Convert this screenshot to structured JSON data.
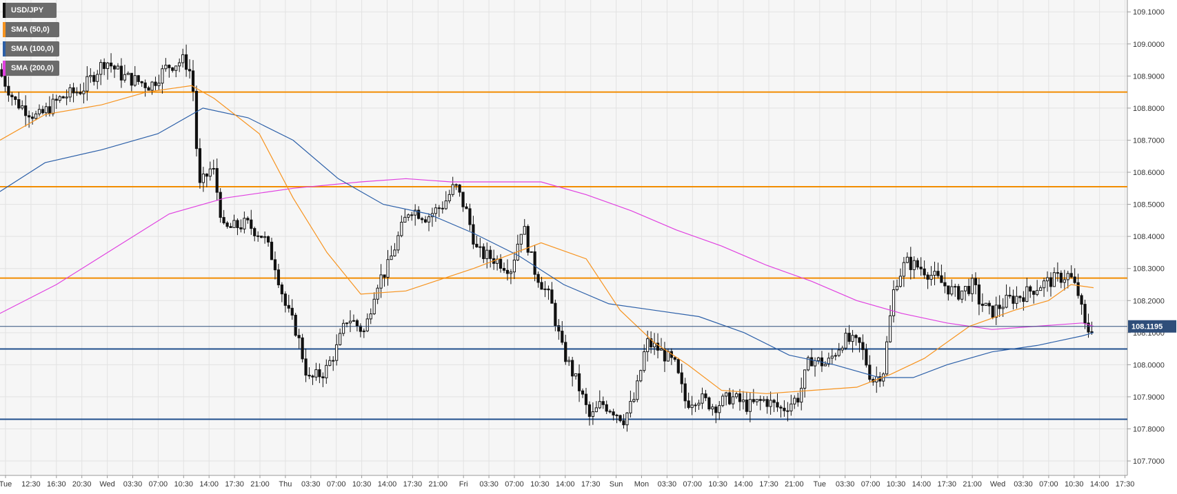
{
  "chart_data": {
    "type": "candlestick",
    "symbol": "USD/JPY",
    "ylim": [
      107.655,
      109.137
    ],
    "y_ticks": [
      "109.1000",
      "109.0000",
      "108.9000",
      "108.8000",
      "108.7000",
      "108.6000",
      "108.5000",
      "108.4000",
      "108.3000",
      "108.2000",
      "108.1000",
      "108.0000",
      "107.9000",
      "107.8000",
      "107.7000"
    ],
    "x_ticks": [
      "Tue",
      "12:30",
      "16:30",
      "20:30",
      "Wed",
      "03:30",
      "07:00",
      "10:30",
      "14:00",
      "17:30",
      "21:00",
      "Thu",
      "03:30",
      "07:00",
      "10:30",
      "14:00",
      "17:30",
      "21:00",
      "Fri",
      "03:30",
      "07:00",
      "10:30",
      "14:00",
      "17:30",
      "Sun",
      "Mon",
      "03:30",
      "07:00",
      "10:30",
      "14:00",
      "17:30",
      "21:00",
      "Tue",
      "03:30",
      "07:00",
      "10:30",
      "14:00",
      "17:30",
      "21:00",
      "Wed",
      "03:30",
      "07:00",
      "10:30",
      "14:00",
      "17:30"
    ],
    "legend": [
      {
        "label": "USD/JPY",
        "color": "#111111"
      },
      {
        "label": "SMA (50,0)",
        "color": "#f7931e"
      },
      {
        "label": "SMA (100,0)",
        "color": "#2b5fa8"
      },
      {
        "label": "SMA (200,0)",
        "color": "#e040e0"
      }
    ],
    "horizontal_levels": [
      {
        "value": 108.85,
        "color": "#f28c00"
      },
      {
        "value": 108.555,
        "color": "#f28c00"
      },
      {
        "value": 108.27,
        "color": "#f28c00"
      },
      {
        "value": 108.049,
        "color": "#1f4e8c"
      },
      {
        "value": 107.83,
        "color": "#1f4e8c"
      }
    ],
    "last_price": {
      "value": 108.1195,
      "label": "108.1195",
      "color": "#2f4e7a"
    },
    "price_path": [
      [
        0,
        108.92
      ],
      [
        0.015,
        108.82
      ],
      [
        0.035,
        108.77
      ],
      [
        0.055,
        108.83
      ],
      [
        0.075,
        108.86
      ],
      [
        0.095,
        108.95
      ],
      [
        0.11,
        108.9
      ],
      [
        0.135,
        108.87
      ],
      [
        0.15,
        108.93
      ],
      [
        0.165,
        108.95
      ],
      [
        0.172,
        108.9
      ],
      [
        0.178,
        108.55
      ],
      [
        0.19,
        108.62
      ],
      [
        0.2,
        108.42
      ],
      [
        0.22,
        108.44
      ],
      [
        0.235,
        108.4
      ],
      [
        0.245,
        108.32
      ],
      [
        0.255,
        108.18
      ],
      [
        0.265,
        108.1
      ],
      [
        0.275,
        107.95
      ],
      [
        0.29,
        107.98
      ],
      [
        0.3,
        108.05
      ],
      [
        0.31,
        108.15
      ],
      [
        0.325,
        108.1
      ],
      [
        0.335,
        108.25
      ],
      [
        0.345,
        108.3
      ],
      [
        0.355,
        108.4
      ],
      [
        0.365,
        108.49
      ],
      [
        0.38,
        108.46
      ],
      [
        0.395,
        108.5
      ],
      [
        0.405,
        108.56
      ],
      [
        0.415,
        108.48
      ],
      [
        0.425,
        108.35
      ],
      [
        0.44,
        108.33
      ],
      [
        0.455,
        108.3
      ],
      [
        0.465,
        108.44
      ],
      [
        0.475,
        108.3
      ],
      [
        0.49,
        108.2
      ],
      [
        0.5,
        108.05
      ],
      [
        0.515,
        107.93
      ],
      [
        0.525,
        107.83
      ],
      [
        0.535,
        107.88
      ],
      [
        0.545,
        107.86
      ],
      [
        0.555,
        107.83
      ],
      [
        0.565,
        107.9
      ],
      [
        0.575,
        108.07
      ],
      [
        0.585,
        108.05
      ],
      [
        0.6,
        108.0
      ],
      [
        0.61,
        107.88
      ],
      [
        0.62,
        107.9
      ],
      [
        0.635,
        107.87
      ],
      [
        0.65,
        107.9
      ],
      [
        0.665,
        107.87
      ],
      [
        0.68,
        107.89
      ],
      [
        0.695,
        107.86
      ],
      [
        0.71,
        107.9
      ],
      [
        0.72,
        108.02
      ],
      [
        0.735,
        108.0
      ],
      [
        0.75,
        108.08
      ],
      [
        0.765,
        108.06
      ],
      [
        0.775,
        107.95
      ],
      [
        0.785,
        107.98
      ],
      [
        0.795,
        108.25
      ],
      [
        0.805,
        108.32
      ],
      [
        0.82,
        108.3
      ],
      [
        0.835,
        108.26
      ],
      [
        0.85,
        108.22
      ],
      [
        0.865,
        108.25
      ],
      [
        0.87,
        108.2
      ],
      [
        0.88,
        108.16
      ],
      [
        0.895,
        108.2
      ],
      [
        0.91,
        108.22
      ],
      [
        0.925,
        108.25
      ],
      [
        0.94,
        108.27
      ],
      [
        0.95,
        108.28
      ],
      [
        0.958,
        108.22
      ],
      [
        0.965,
        108.1
      ],
      [
        0.97,
        108.1195
      ]
    ],
    "sma_50": [
      [
        0,
        108.7
      ],
      [
        0.04,
        108.78
      ],
      [
        0.09,
        108.81
      ],
      [
        0.13,
        108.85
      ],
      [
        0.17,
        108.87
      ],
      [
        0.19,
        108.83
      ],
      [
        0.23,
        108.72
      ],
      [
        0.26,
        108.52
      ],
      [
        0.29,
        108.35
      ],
      [
        0.32,
        108.22
      ],
      [
        0.36,
        108.23
      ],
      [
        0.42,
        108.3
      ],
      [
        0.48,
        108.38
      ],
      [
        0.52,
        108.33
      ],
      [
        0.55,
        108.17
      ],
      [
        0.58,
        108.07
      ],
      [
        0.61,
        108.0
      ],
      [
        0.64,
        107.92
      ],
      [
        0.68,
        107.91
      ],
      [
        0.72,
        107.92
      ],
      [
        0.76,
        107.93
      ],
      [
        0.79,
        107.97
      ],
      [
        0.82,
        108.02
      ],
      [
        0.86,
        108.12
      ],
      [
        0.9,
        108.17
      ],
      [
        0.93,
        108.2
      ],
      [
        0.95,
        108.25
      ],
      [
        0.97,
        108.24
      ]
    ],
    "sma_100": [
      [
        0,
        108.54
      ],
      [
        0.04,
        108.63
      ],
      [
        0.09,
        108.67
      ],
      [
        0.14,
        108.72
      ],
      [
        0.18,
        108.8
      ],
      [
        0.22,
        108.77
      ],
      [
        0.26,
        108.7
      ],
      [
        0.3,
        108.58
      ],
      [
        0.34,
        108.5
      ],
      [
        0.38,
        108.47
      ],
      [
        0.42,
        108.41
      ],
      [
        0.46,
        108.34
      ],
      [
        0.5,
        108.25
      ],
      [
        0.54,
        108.19
      ],
      [
        0.58,
        108.17
      ],
      [
        0.62,
        108.15
      ],
      [
        0.66,
        108.1
      ],
      [
        0.7,
        108.03
      ],
      [
        0.74,
        108.0
      ],
      [
        0.78,
        107.96
      ],
      [
        0.81,
        107.96
      ],
      [
        0.84,
        108.0
      ],
      [
        0.88,
        108.04
      ],
      [
        0.92,
        108.06
      ],
      [
        0.96,
        108.09
      ],
      [
        0.97,
        108.1
      ]
    ],
    "sma_200": [
      [
        0,
        108.16
      ],
      [
        0.05,
        108.25
      ],
      [
        0.1,
        108.36
      ],
      [
        0.15,
        108.47
      ],
      [
        0.2,
        108.52
      ],
      [
        0.26,
        108.55
      ],
      [
        0.32,
        108.57
      ],
      [
        0.36,
        108.58
      ],
      [
        0.4,
        108.57
      ],
      [
        0.44,
        108.57
      ],
      [
        0.48,
        108.57
      ],
      [
        0.52,
        108.53
      ],
      [
        0.56,
        108.48
      ],
      [
        0.6,
        108.42
      ],
      [
        0.64,
        108.37
      ],
      [
        0.68,
        108.31
      ],
      [
        0.72,
        108.26
      ],
      [
        0.76,
        108.2
      ],
      [
        0.8,
        108.16
      ],
      [
        0.84,
        108.13
      ],
      [
        0.88,
        108.11
      ],
      [
        0.92,
        108.12
      ],
      [
        0.96,
        108.13
      ],
      [
        0.97,
        108.12
      ]
    ]
  }
}
